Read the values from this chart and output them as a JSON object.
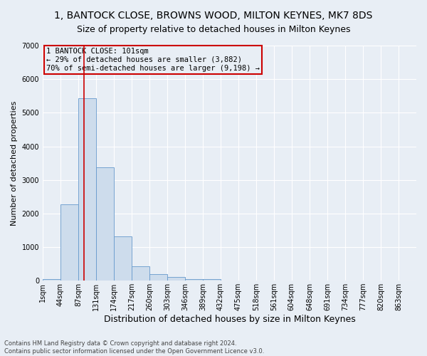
{
  "title1": "1, BANTOCK CLOSE, BROWNS WOOD, MILTON KEYNES, MK7 8DS",
  "title2": "Size of property relative to detached houses in Milton Keynes",
  "xlabel": "Distribution of detached houses by size in Milton Keynes",
  "ylabel": "Number of detached properties",
  "footnote1": "Contains HM Land Registry data © Crown copyright and database right 2024.",
  "footnote2": "Contains public sector information licensed under the Open Government Licence v3.0.",
  "bin_starts": [
    1,
    44,
    87,
    131,
    174,
    217,
    260,
    303,
    346,
    389,
    432,
    475,
    518,
    561,
    604,
    648,
    691,
    734,
    777,
    820,
    863
  ],
  "bar_heights": [
    50,
    2280,
    5430,
    3380,
    1310,
    430,
    200,
    100,
    50,
    50,
    0,
    0,
    0,
    0,
    0,
    0,
    0,
    0,
    0,
    0,
    0
  ],
  "bar_color": "#cddcec",
  "bar_edgecolor": "#6699cc",
  "vline_x": 101,
  "vline_color": "#cc0000",
  "annotation_text": "1 BANTOCK CLOSE: 101sqm\n← 29% of detached houses are smaller (3,882)\n70% of semi-detached houses are larger (9,198) →",
  "annotation_box_color": "#cc0000",
  "ylim": [
    0,
    7000
  ],
  "yticks": [
    0,
    1000,
    2000,
    3000,
    4000,
    5000,
    6000,
    7000
  ],
  "background_color": "#e8eef5",
  "grid_color": "#ffffff",
  "title1_fontsize": 10,
  "title2_fontsize": 9,
  "xlabel_fontsize": 9,
  "ylabel_fontsize": 8,
  "annot_fontsize": 7.5,
  "tick_fontsize": 7
}
